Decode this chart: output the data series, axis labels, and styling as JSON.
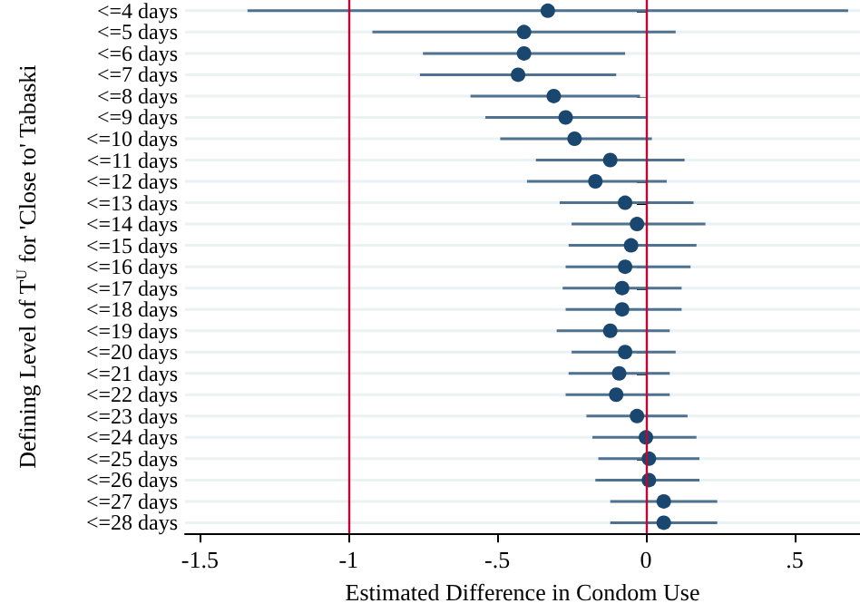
{
  "chart_data": {
    "type": "scatter",
    "orientation": "horizontal",
    "xlabel": "Estimated Difference in Condom Use",
    "ylabel": "Defining Level of T$^{U}$ for 'Close to' Tabaski",
    "categories": [
      "<=4 days",
      "<=5 days",
      "<=6 days",
      "<=7 days",
      "<=8 days",
      "<=9 days",
      "<=10 days",
      "<=11 days",
      "<=12 days",
      "<=13 days",
      "<=14 days",
      "<=15 days",
      "<=16 days",
      "<=17 days",
      "<=18 days",
      "<=19 days",
      "<=20 days",
      "<=21 days",
      "<=22 days",
      "<=23 days",
      "<=24 days",
      "<=25 days",
      "<=26 days",
      "<=27 days",
      "<=28 days"
    ],
    "values": [
      -0.33,
      -0.41,
      -0.41,
      -0.43,
      -0.31,
      -0.27,
      -0.24,
      -0.12,
      -0.17,
      -0.07,
      -0.03,
      -0.05,
      -0.07,
      -0.08,
      -0.08,
      -0.12,
      -0.07,
      -0.09,
      -0.1,
      -0.03,
      0,
      0.01,
      0.01,
      0.06,
      0.06
    ],
    "errors": [
      [
        -1.34,
        0.68
      ],
      [
        -0.92,
        0.1
      ],
      [
        -0.75,
        -0.07
      ],
      [
        -0.76,
        -0.1
      ],
      [
        -0.59,
        -0.02
      ],
      [
        -0.54,
        0
      ],
      [
        -0.49,
        0.02
      ],
      [
        -0.37,
        0.13
      ],
      [
        -0.4,
        0.07
      ],
      [
        -0.29,
        0.16
      ],
      [
        -0.25,
        0.2
      ],
      [
        -0.26,
        0.17
      ],
      [
        -0.27,
        0.15
      ],
      [
        -0.28,
        0.12
      ],
      [
        -0.27,
        0.12
      ],
      [
        -0.3,
        0.08
      ],
      [
        -0.25,
        0.1
      ],
      [
        -0.26,
        0.08
      ],
      [
        -0.27,
        0.08
      ],
      [
        -0.2,
        0.14
      ],
      [
        -0.18,
        0.17
      ],
      [
        -0.16,
        0.18
      ],
      [
        -0.17,
        0.18
      ],
      [
        -0.12,
        0.24
      ],
      [
        -0.12,
        0.24
      ]
    ],
    "color": "#1a476f",
    "marker": "circle",
    "grid": "y",
    "xlim": [
      -1.55,
      0.72
    ],
    "xticks": [
      {
        "value": -1.5,
        "label": "-1.5"
      },
      {
        "value": -1,
        "label": "-1"
      },
      {
        "value": -0.5,
        "label": "-.5"
      },
      0,
      {
        "value": 0.5,
        "label": ".5"
      }
    ],
    "ref_lines": [
      {
        "axis": "x",
        "value": -1,
        "color": "#c10534"
      },
      {
        "axis": "x",
        "value": 0,
        "color": "#c10534"
      }
    ]
  }
}
